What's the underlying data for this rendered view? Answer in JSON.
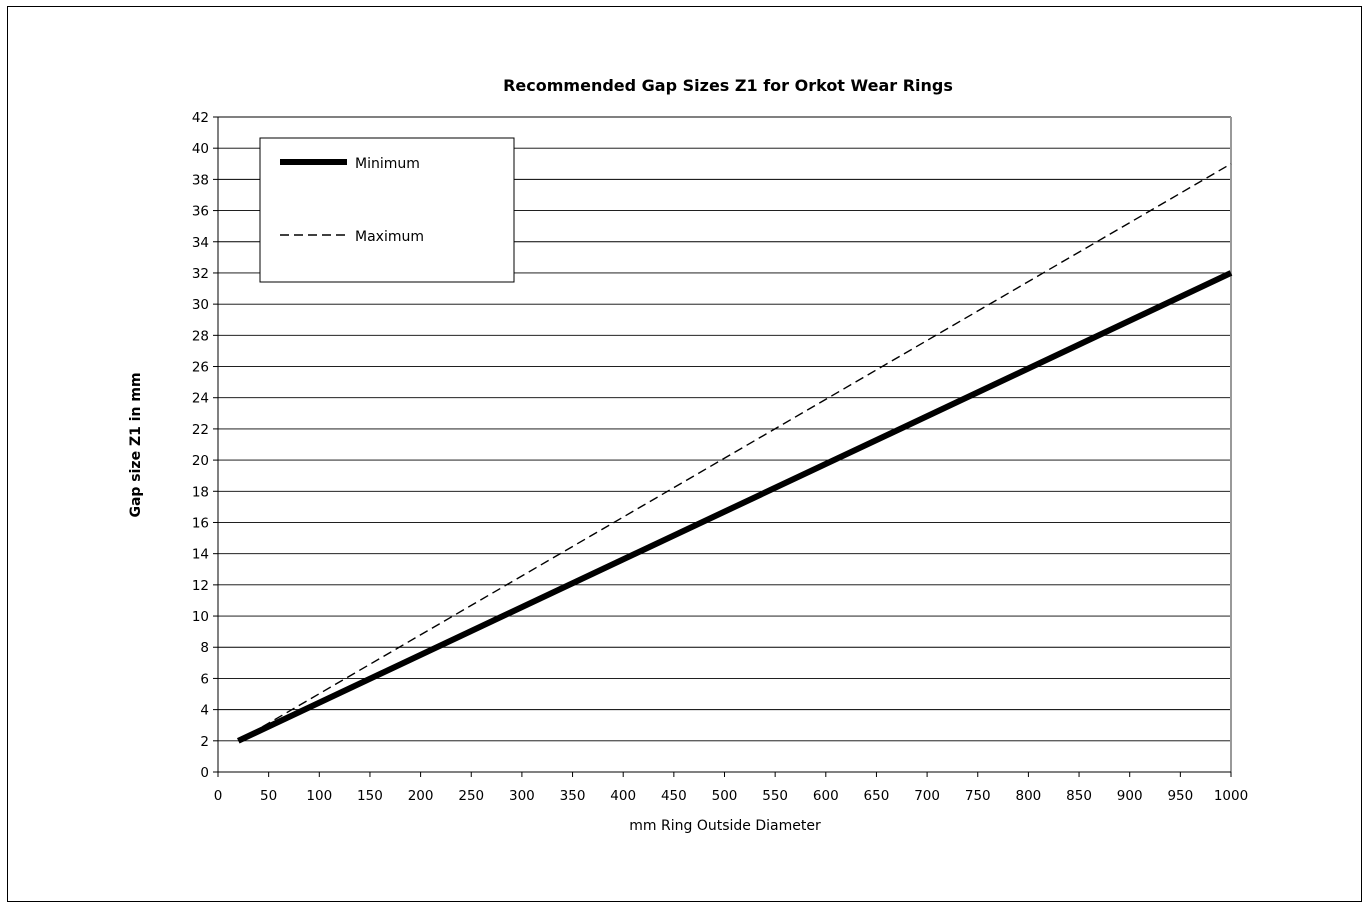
{
  "chart_data": {
    "type": "line",
    "title": "Recommended Gap Sizes Z1 for Orkot Wear Rings",
    "xlabel": "mm Ring Outside Diameter",
    "ylabel": "Gap size Z1 in mm",
    "xlim": [
      0,
      1000
    ],
    "ylim": [
      0,
      42
    ],
    "xticks": [
      0,
      50,
      100,
      150,
      200,
      250,
      300,
      350,
      400,
      450,
      500,
      550,
      600,
      650,
      700,
      750,
      800,
      850,
      900,
      950,
      1000
    ],
    "yticks": [
      0,
      2,
      4,
      6,
      8,
      10,
      12,
      14,
      16,
      18,
      20,
      22,
      24,
      26,
      28,
      30,
      32,
      34,
      36,
      38,
      40,
      42
    ],
    "grid": "horizontal",
    "legend": "top-left",
    "series": [
      {
        "name": "Minimum",
        "style": "solid-thick",
        "color": "#000000",
        "x": [
          20,
          1000
        ],
        "y": [
          2.0,
          32.0
        ]
      },
      {
        "name": "Maximum",
        "style": "dashed",
        "color": "#000000",
        "x": [
          20,
          1000
        ],
        "y": [
          2.0,
          39.0
        ]
      }
    ]
  }
}
